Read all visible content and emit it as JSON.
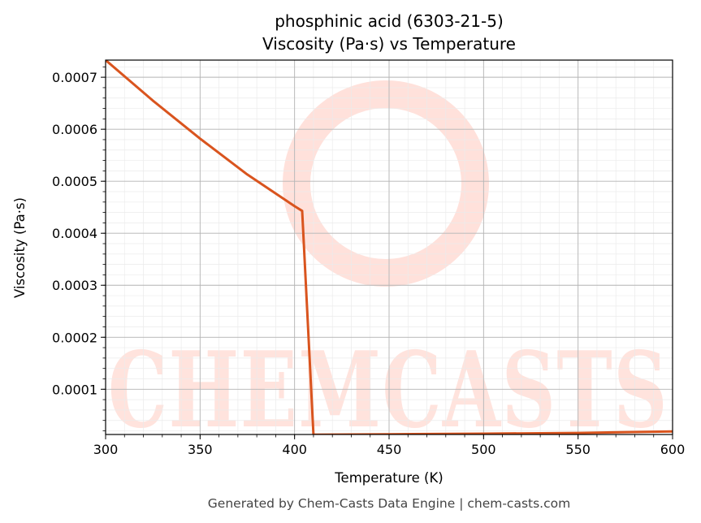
{
  "chart_data": {
    "type": "line",
    "title": "phosphinic acid (6303-21-5)",
    "subtitle": "Viscosity (Pa·s) vs Temperature",
    "xlabel": "Temperature (K)",
    "ylabel": "Viscosity (Pa·s)",
    "xlim": [
      300,
      600
    ],
    "ylim": [
      1.3e-05,
      0.000733
    ],
    "grid": true,
    "x_ticks": [
      "300",
      "350",
      "400",
      "450",
      "500",
      "550",
      "600"
    ],
    "y_ticks": [
      "0.0001",
      "0.0002",
      "0.0003",
      "0.0004",
      "0.0005",
      "0.0006",
      "0.0007"
    ],
    "series": [
      {
        "color": "#d9541e",
        "x": [
          300,
          325,
          350,
          375,
          400,
          404,
          410,
          450,
          500,
          550,
          600
        ],
        "y": [
          0.000733,
          0.000655,
          0.000582,
          0.000513,
          0.000452,
          0.000443,
          1.25e-05,
          1.35e-05,
          1.45e-05,
          1.6e-05,
          1.9e-05
        ]
      }
    ]
  },
  "footer": "Generated by Chem-Casts Data Engine | chem-casts.com",
  "watermark": "CHEMCASTS"
}
